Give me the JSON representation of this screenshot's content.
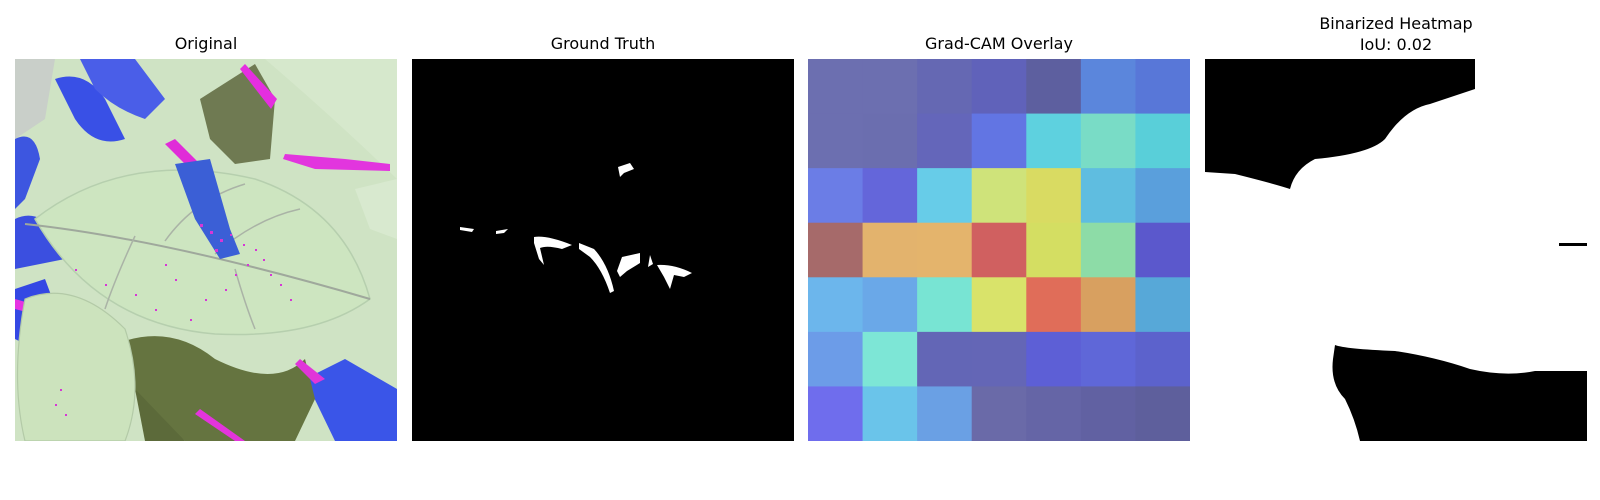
{
  "panels": [
    {
      "title": "Original"
    },
    {
      "title": "Ground Truth"
    },
    {
      "title": "Grad-CAM Overlay"
    },
    {
      "title": "Binarized Heatmap",
      "subtitle": "IoU: 0.02"
    }
  ],
  "gradcam": {
    "rows": 7,
    "cols": 7,
    "cell_colors": [
      [
        "#6c6fb0",
        "#6c6fb0",
        "#6568b3",
        "#6062ba",
        "#5d5f9f",
        "#5b86dc",
        "#5877d8"
      ],
      [
        "#6c6fb0",
        "#6b6eaf",
        "#6466ba",
        "#6275e3",
        "#5ed1df",
        "#79dcc6",
        "#59cfd9"
      ],
      [
        "#6b7de6",
        "#6466da",
        "#67cce8",
        "#cfe37a",
        "#d9db62",
        "#5fbde0",
        "#5a9fdc"
      ],
      [
        "#a66a6a",
        "#e3b36d",
        "#e4b46c",
        "#d06060",
        "#d4de62",
        "#8ddca7",
        "#5b58cc"
      ],
      [
        "#6cb6ec",
        "#6aa8e8",
        "#78e4d3",
        "#d9e36a",
        "#e06d59",
        "#d8a060",
        "#57a8d8"
      ],
      [
        "#6c9ce8",
        "#7de6d6",
        "#6366b6",
        "#6466b6",
        "#5d5fd6",
        "#5f67d8",
        "#5c62cc"
      ],
      [
        "#6f6ded",
        "#6ac4ea",
        "#6aa0e4",
        "#6a6aa8",
        "#6565a6",
        "#6161a2",
        "#5e5f9c"
      ]
    ]
  }
}
